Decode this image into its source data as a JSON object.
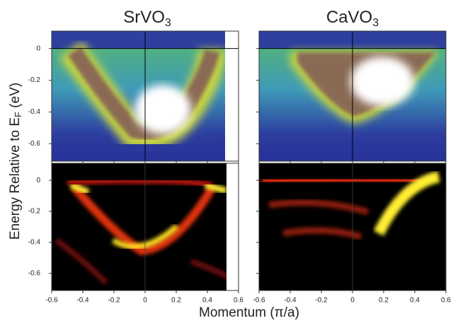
{
  "chart_data": [
    {
      "type": "image",
      "title": "SrVO",
      "title_subscript": "3",
      "xlim": [
        -0.6,
        0.6
      ],
      "ylim": [
        -0.71,
        0.11
      ],
      "xticks": [
        -0.6,
        -0.4,
        -0.2,
        0,
        0.2,
        0.4,
        0.6
      ],
      "yticks": [
        0,
        -0.2,
        -0.4,
        -0.6
      ],
      "colormap": "spectrum",
      "show_xticklabels": false,
      "show_yticklabels": true
    },
    {
      "type": "image",
      "title": "CaVO",
      "title_subscript": "3",
      "xlim": [
        -0.6,
        0.6
      ],
      "ylim": [
        -0.71,
        0.11
      ],
      "xticks": [
        -0.6,
        -0.4,
        -0.2,
        0,
        0.2,
        0.4,
        0.6
      ],
      "yticks": [
        0,
        -0.2,
        -0.4,
        -0.6
      ],
      "colormap": "spectrum",
      "show_xticklabels": false,
      "show_yticklabels": false
    },
    {
      "type": "image",
      "xlim": [
        -0.6,
        0.6
      ],
      "ylim": [
        -0.71,
        0.11
      ],
      "xticks": [
        -0.6,
        -0.4,
        -0.2,
        0,
        0.2,
        0.4,
        0.6
      ],
      "yticks": [
        0,
        -0.2,
        -0.4,
        -0.6
      ],
      "colormap": "hot",
      "show_xticklabels": true,
      "show_yticklabels": true
    },
    {
      "type": "image",
      "xlim": [
        -0.6,
        0.6
      ],
      "ylim": [
        -0.71,
        0.11
      ],
      "xticks": [
        -0.6,
        -0.4,
        -0.2,
        0,
        0.2,
        0.4,
        0.6
      ],
      "yticks": [
        0,
        -0.2,
        -0.4,
        -0.6
      ],
      "colormap": "hot",
      "show_xticklabels": true,
      "show_yticklabels": false
    }
  ],
  "figure": {
    "ylabel": "Energy Relative to E",
    "ylabel_subscript": "F",
    "ylabel_unit": " (eV)",
    "xlabel": "Momentum (π/a)"
  }
}
